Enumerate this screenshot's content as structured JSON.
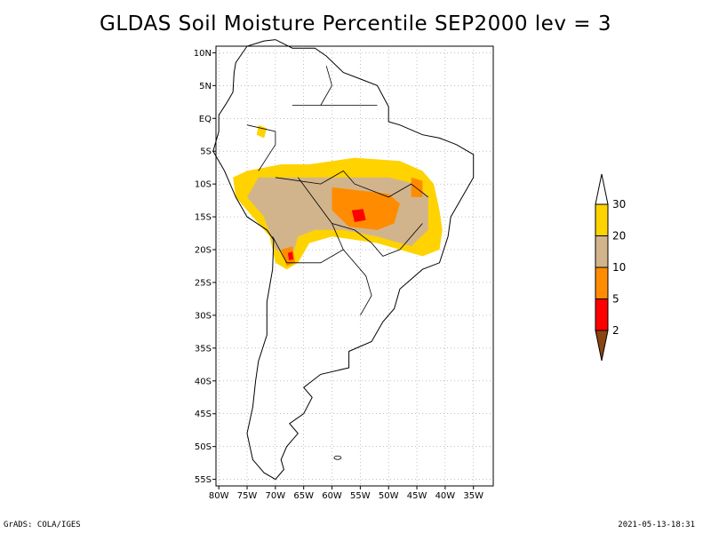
{
  "title": "GLDAS Soil Moisture Percentile SEP2000 lev = 3",
  "map": {
    "lat_labels": [
      "10N",
      "5N",
      "EQ",
      "5S",
      "10S",
      "15S",
      "20S",
      "25S",
      "30S",
      "35S",
      "40S",
      "45S",
      "50S",
      "55S"
    ],
    "lat_values": [
      10,
      5,
      0,
      -5,
      -10,
      -15,
      -20,
      -25,
      -30,
      -35,
      -40,
      -45,
      -50,
      -55
    ],
    "lon_labels": [
      "80W",
      "75W",
      "70W",
      "65W",
      "60W",
      "55W",
      "50W",
      "45W",
      "40W",
      "35W"
    ],
    "lon_values": [
      -80,
      -75,
      -70,
      -65,
      -60,
      -55,
      -50,
      -45,
      -40,
      -35
    ],
    "extent": {
      "lon_min": -80.5,
      "lon_max": -31.5,
      "lat_min": -56,
      "lat_max": 11
    }
  },
  "colorbar": {
    "levels": [
      "30",
      "20",
      "10",
      "5",
      "2"
    ],
    "colors": [
      "#ffffff",
      "#fed300",
      "#d2b48c",
      "#ff8c00",
      "#ff0000",
      "#8b4513"
    ]
  },
  "footer": {
    "left": "GrADS: COLA/IGES",
    "right": "2021-05-13-18:31"
  }
}
